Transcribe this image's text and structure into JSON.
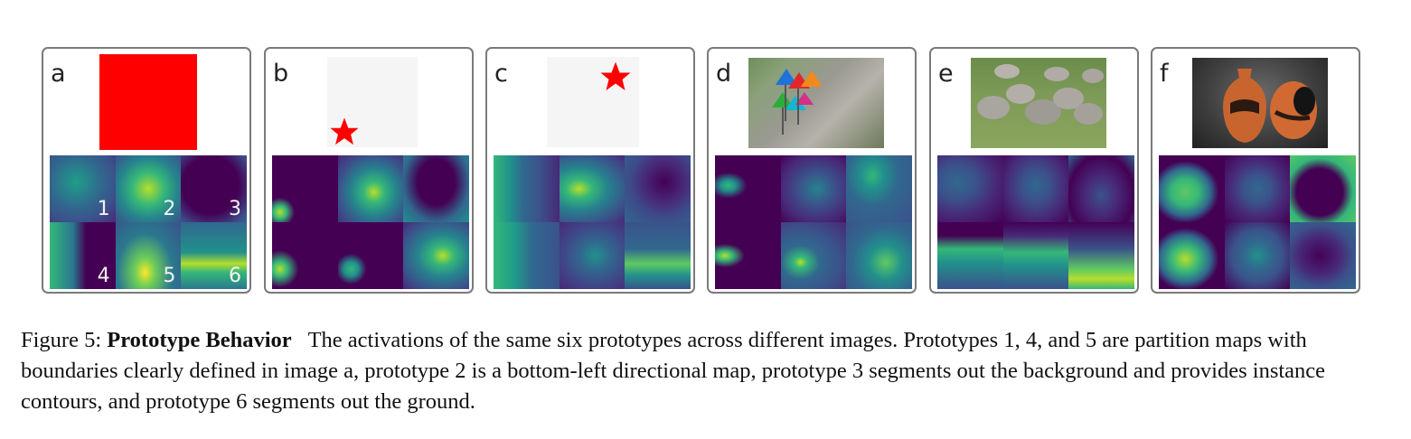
{
  "panels": [
    {
      "letter": "a",
      "cell_numbers": [
        "1",
        "2",
        "3",
        "4",
        "5",
        "6"
      ]
    },
    {
      "letter": "b"
    },
    {
      "letter": "c"
    },
    {
      "letter": "d"
    },
    {
      "letter": "e"
    },
    {
      "letter": "f"
    }
  ],
  "colors": {
    "viridis_dark": "#440154",
    "viridis_mid": "#31688e",
    "viridis_teal": "#21918c",
    "viridis_green": "#5ec962",
    "viridis_yellow": "#fde725",
    "red": "#ff0000",
    "panel_border": "#7a7a7a"
  },
  "caption": {
    "label": "Figure 5:",
    "title": "Prototype Behavior",
    "text": "The activations of the same six prototypes across different images. Prototypes 1, 4, and 5 are partition maps with boundaries clearly defined in image a, prototype 2 is a bottom-left directional map, prototype 3 segments out the background and provides instance contours, and prototype 6 segments out the ground."
  }
}
